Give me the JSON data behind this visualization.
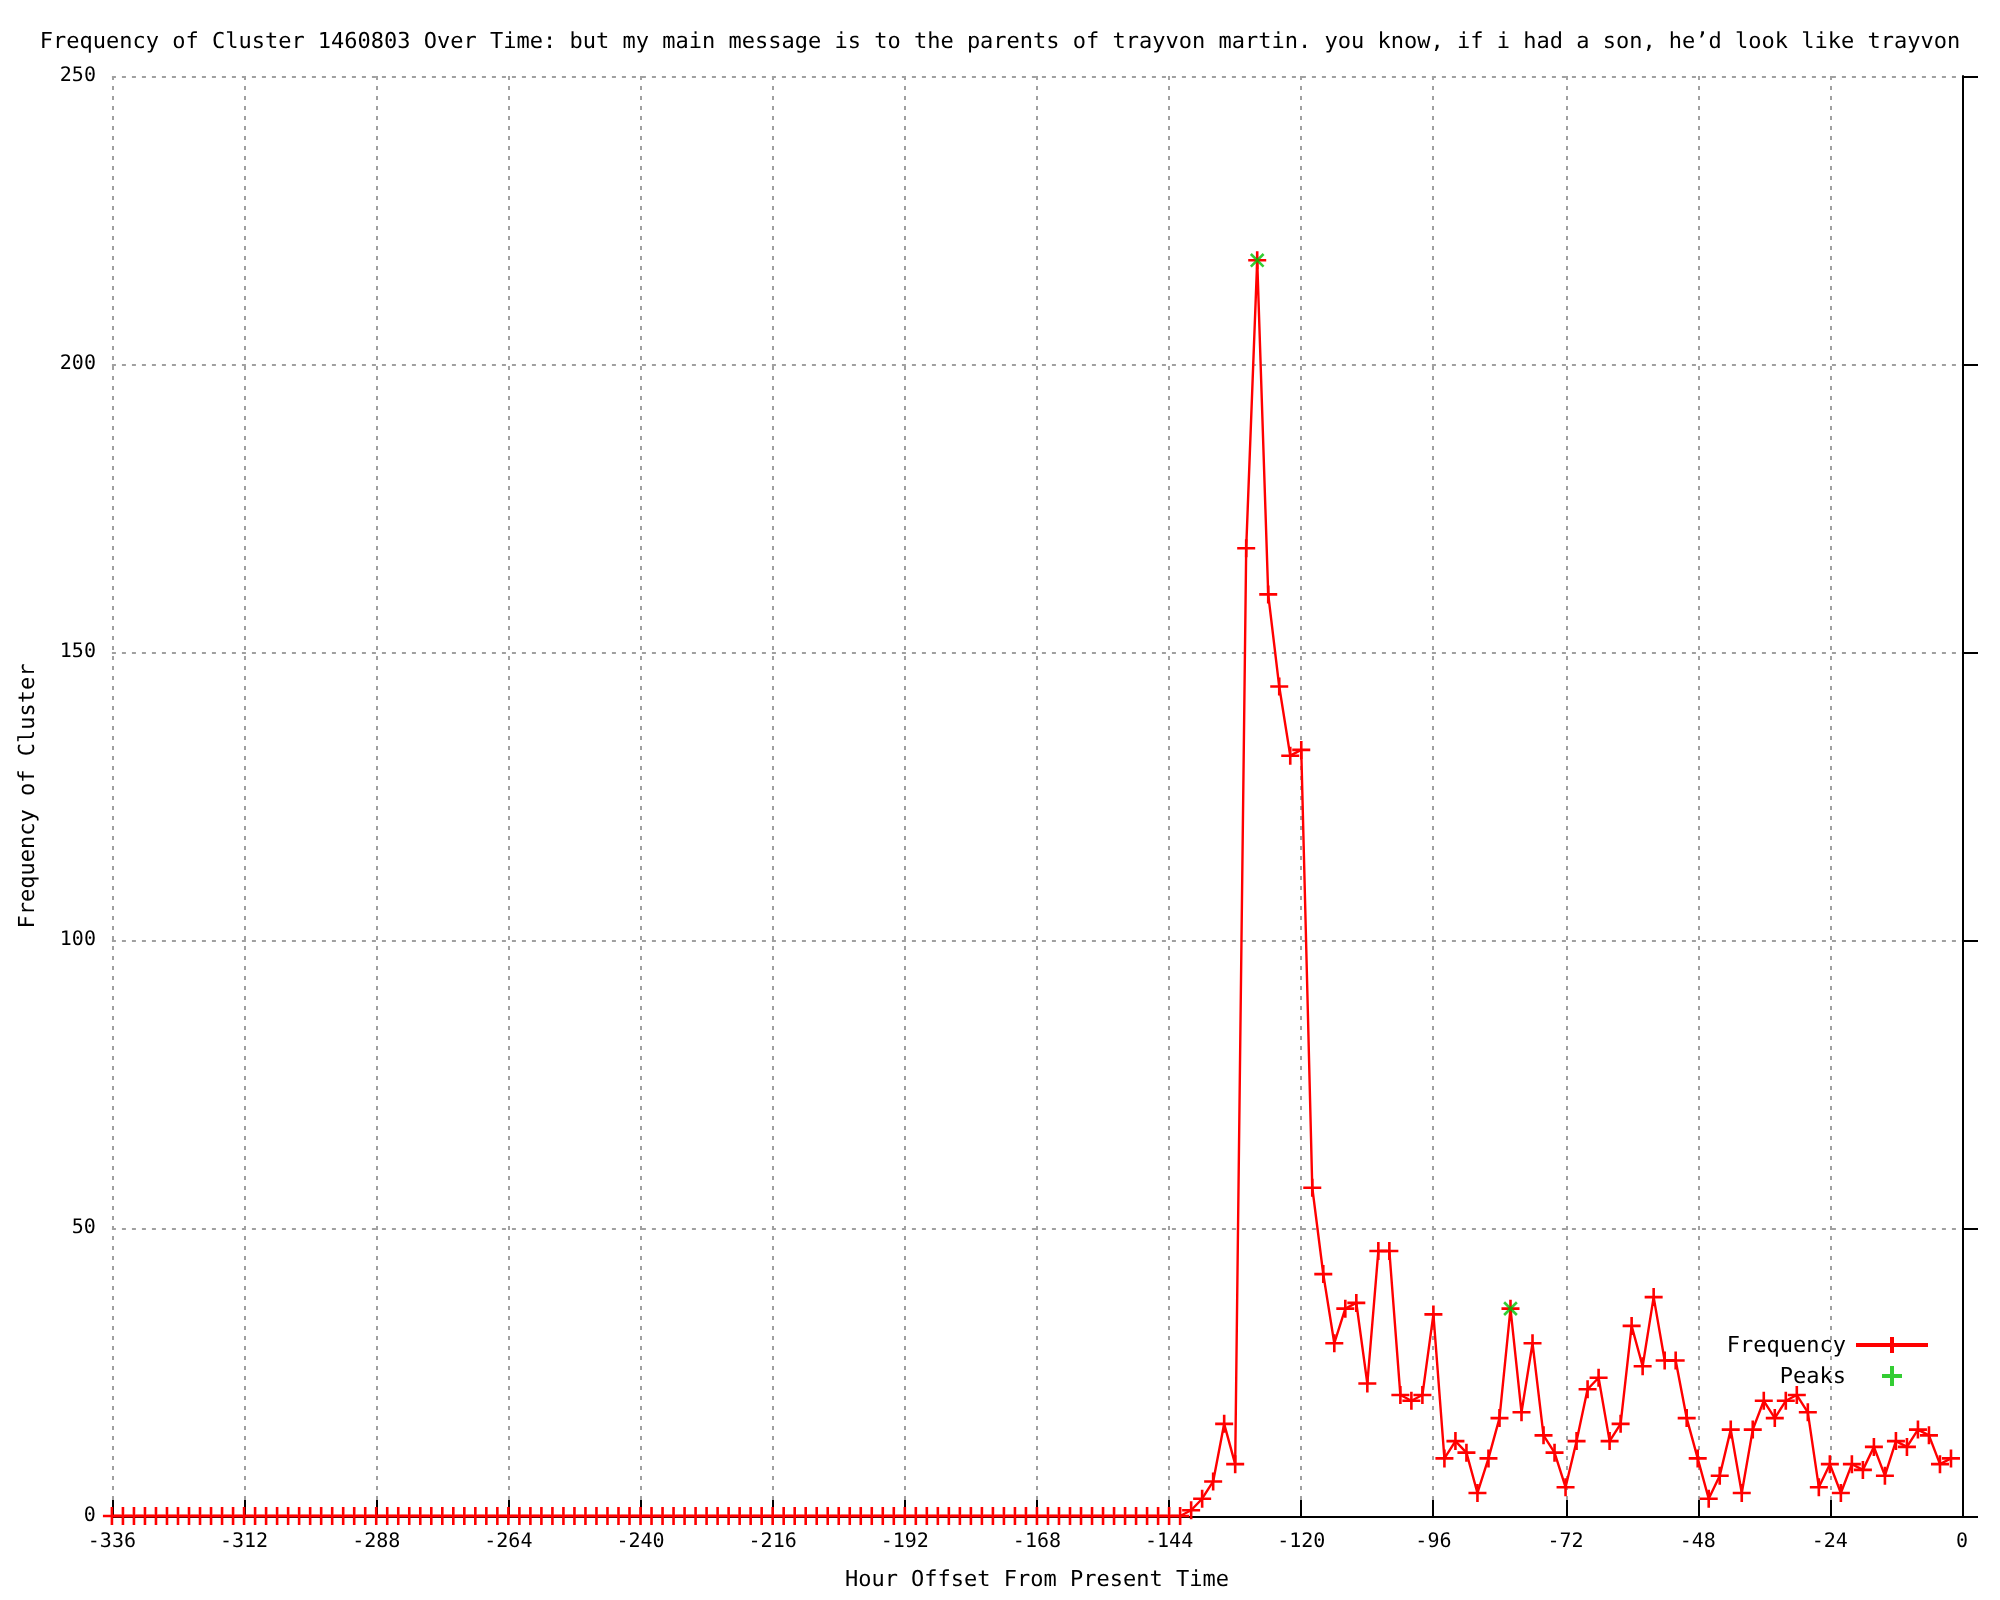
{
  "chart_data": {
    "type": "line",
    "title": "Frequency of Cluster 1460803 Over Time: but my main message is to the parents of trayvon martin. you know, if i had a son, he’d look like trayvon",
    "xlabel": "Hour Offset From Present Time",
    "ylabel": "Frequency of Cluster",
    "x": [
      -336,
      -334,
      -332,
      -330,
      -328,
      -326,
      -324,
      -322,
      -320,
      -318,
      -316,
      -314,
      -312,
      -310,
      -308,
      -306,
      -304,
      -302,
      -300,
      -298,
      -296,
      -294,
      -292,
      -290,
      -288,
      -286,
      -284,
      -282,
      -280,
      -278,
      -276,
      -274,
      -272,
      -270,
      -268,
      -266,
      -264,
      -262,
      -260,
      -258,
      -256,
      -254,
      -252,
      -250,
      -248,
      -246,
      -244,
      -242,
      -240,
      -238,
      -236,
      -234,
      -232,
      -230,
      -228,
      -226,
      -224,
      -222,
      -220,
      -218,
      -216,
      -214,
      -212,
      -210,
      -208,
      -206,
      -204,
      -202,
      -200,
      -198,
      -196,
      -194,
      -192,
      -190,
      -188,
      -186,
      -184,
      -182,
      -180,
      -178,
      -176,
      -174,
      -172,
      -170,
      -168,
      -166,
      -164,
      -162,
      -160,
      -158,
      -156,
      -154,
      -152,
      -150,
      -148,
      -146,
      -144,
      -142,
      -140,
      -138,
      -136,
      -134,
      -132,
      -130,
      -128,
      -126,
      -124,
      -122,
      -120,
      -118,
      -116,
      -114,
      -112,
      -110,
      -108,
      -106,
      -104,
      -102,
      -100,
      -98,
      -96,
      -94,
      -92,
      -90,
      -88,
      -86,
      -84,
      -82,
      -80,
      -78,
      -76,
      -74,
      -72,
      -70,
      -68,
      -66,
      -64,
      -62,
      -60,
      -58,
      -56,
      -54,
      -52,
      -50,
      -48,
      -46,
      -44,
      -42,
      -40,
      -38,
      -36,
      -34,
      -32,
      -30,
      -28,
      -26,
      -24,
      -22,
      -20,
      -18,
      -16,
      -14,
      -12,
      -10,
      -8,
      -6,
      -4,
      -2
    ],
    "series": [
      {
        "name": "Frequency",
        "color": "#ff0000",
        "marker": "cross",
        "values": [
          0,
          0,
          0,
          0,
          0,
          0,
          0,
          0,
          0,
          0,
          0,
          0,
          0,
          0,
          0,
          0,
          0,
          0,
          0,
          0,
          0,
          0,
          0,
          0,
          0,
          0,
          0,
          0,
          0,
          0,
          0,
          0,
          0,
          0,
          0,
          0,
          0,
          0,
          0,
          0,
          0,
          0,
          0,
          0,
          0,
          0,
          0,
          0,
          0,
          0,
          0,
          0,
          0,
          0,
          0,
          0,
          0,
          0,
          0,
          0,
          0,
          0,
          0,
          0,
          0,
          0,
          0,
          0,
          0,
          0,
          0,
          0,
          0,
          0,
          0,
          0,
          0,
          0,
          0,
          0,
          0,
          0,
          0,
          0,
          0,
          0,
          0,
          0,
          0,
          0,
          0,
          0,
          0,
          0,
          0,
          0,
          0,
          0,
          1,
          3,
          6,
          16,
          9,
          168,
          218,
          160,
          144,
          132,
          133,
          57,
          42,
          30,
          36,
          37,
          23,
          46,
          46,
          21,
          20,
          21,
          35,
          10,
          13,
          11,
          4,
          10,
          17,
          36,
          18,
          30,
          14,
          11,
          5,
          13,
          22,
          24,
          13,
          16,
          33,
          26,
          38,
          27,
          27,
          17,
          10,
          3,
          7,
          15,
          4,
          15,
          20,
          17,
          20,
          21,
          18,
          5,
          9,
          4,
          9,
          8,
          12,
          7,
          13,
          12,
          15,
          14,
          9,
          10
        ]
      },
      {
        "name": "Peaks",
        "type": "scatter",
        "color": "#00c000",
        "marker": "cross",
        "x": [
          -128,
          -82
        ],
        "values": [
          218,
          36
        ]
      }
    ],
    "xlim": [
      -336,
      0
    ],
    "xticks": [
      -336,
      -312,
      -288,
      -264,
      -240,
      -216,
      -192,
      -168,
      -144,
      -120,
      -96,
      -72,
      -48,
      -24,
      0
    ],
    "ylim": [
      0,
      250
    ],
    "yticks": [
      0,
      50,
      100,
      150,
      200,
      250
    ],
    "grid": true,
    "legend": "bottom right"
  }
}
